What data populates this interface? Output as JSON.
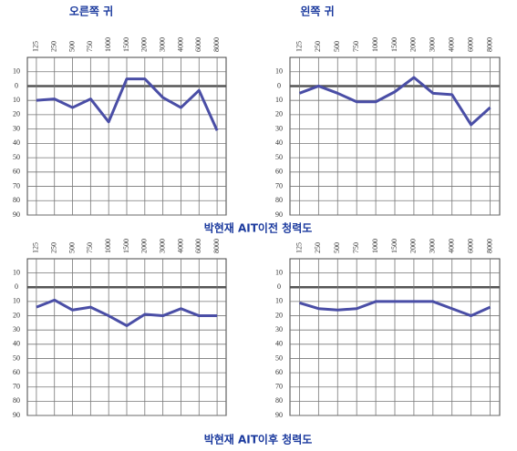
{
  "labels": {
    "right_ear": "오른쪽 귀",
    "left_ear": "왼쪽 귀",
    "caption_before": "박현재 AIT이전 청력도",
    "caption_after": "박현재 AIT이후 청력도"
  },
  "chart_data": [
    {
      "type": "line",
      "categories": [
        "125",
        "250",
        "500",
        "750",
        "1000",
        "1500",
        "2000",
        "3000",
        "4000",
        "6000",
        "8000"
      ],
      "series": [
        {
          "color": "#4a4ea6",
          "values": [
            10,
            9,
            15,
            9,
            25,
            -5,
            -5,
            8,
            15,
            3,
            31
          ]
        }
      ],
      "ylim": [
        -20,
        90
      ],
      "y_reversed": true,
      "grid": true,
      "yticks": [
        {
          "value": -10,
          "label": "10"
        },
        0,
        10,
        20,
        30,
        40,
        50,
        60,
        70,
        80,
        90
      ]
    },
    {
      "type": "line",
      "categories": [
        "125",
        "250",
        "500",
        "750",
        "1000",
        "1500",
        "2000",
        "3000",
        "4000",
        "6000",
        "8000"
      ],
      "series": [
        {
          "color": "#4a4ea6",
          "values": [
            5,
            0,
            5,
            11,
            11,
            4,
            -6,
            5,
            6,
            27,
            15
          ]
        }
      ],
      "ylim": [
        -20,
        90
      ],
      "y_reversed": true,
      "grid": true,
      "yticks": [
        {
          "value": -10,
          "label": "10"
        },
        0,
        10,
        20,
        30,
        40,
        50,
        60,
        70,
        80,
        90
      ]
    },
    {
      "type": "line",
      "categories": [
        "125",
        "250",
        "500",
        "750",
        "1000",
        "1500",
        "2000",
        "3000",
        "4000",
        "6000",
        "8000"
      ],
      "series": [
        {
          "color": "#4a4ea6",
          "values": [
            14,
            9,
            16,
            14,
            20,
            27,
            19,
            20,
            15,
            20,
            20
          ]
        }
      ],
      "ylim": [
        -20,
        90
      ],
      "y_reversed": true,
      "grid": true,
      "yticks": [
        {
          "value": -10,
          "label": "10"
        },
        0,
        10,
        20,
        30,
        40,
        50,
        60,
        70,
        80,
        90
      ]
    },
    {
      "type": "line",
      "categories": [
        "125",
        "250",
        "500",
        "750",
        "1000",
        "1500",
        "2000",
        "3000",
        "4000",
        "6000",
        "8000"
      ],
      "series": [
        {
          "color": "#4a4ea6",
          "values": [
            11,
            15,
            16,
            15,
            10,
            10,
            10,
            10,
            15,
            20,
            14
          ]
        }
      ],
      "ylim": [
        -20,
        90
      ],
      "y_reversed": true,
      "grid": true,
      "yticks": [
        {
          "value": -10,
          "label": "10"
        },
        0,
        10,
        20,
        30,
        40,
        50,
        60,
        70,
        80,
        90
      ]
    }
  ]
}
